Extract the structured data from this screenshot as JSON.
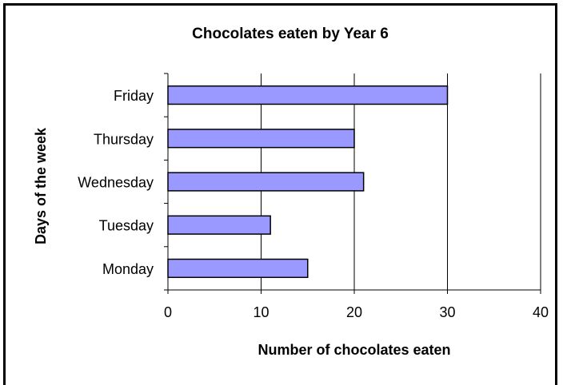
{
  "chart_data": {
    "type": "bar",
    "orientation": "horizontal",
    "title": "Chocolates eaten by Year 6",
    "xlabel": "Number of chocolates eaten",
    "ylabel": "Days of the week",
    "categories": [
      "Monday",
      "Tuesday",
      "Wednesday",
      "Thursday",
      "Friday"
    ],
    "values": [
      15,
      11,
      21,
      20,
      30
    ],
    "xlim": [
      0,
      40
    ],
    "xticks": [
      "0",
      "10",
      "20",
      "30",
      "40"
    ],
    "grid": "vertical",
    "legend": "none",
    "colors": {
      "bar_fill": "#9999ff",
      "bar_stroke": "#000000",
      "gridline": "#000000",
      "axis": "#000000",
      "background": "#ffffff"
    }
  }
}
